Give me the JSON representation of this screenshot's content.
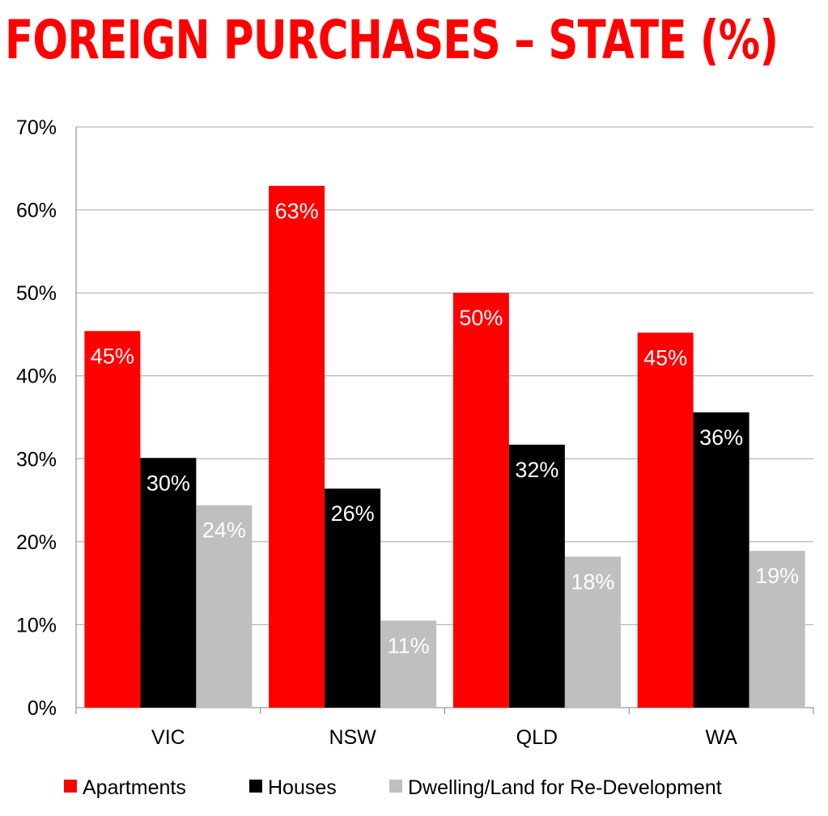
{
  "chart_data": {
    "type": "bar",
    "title": "FOREIGN PURCHASES – STATE (%)",
    "categories": [
      "VIC",
      "NSW",
      "QLD",
      "WA"
    ],
    "series": [
      {
        "name": "Apartments",
        "color": "#ff0000",
        "label_color": "#ffffff",
        "values": [
          45.4,
          62.9,
          50.0,
          45.2
        ],
        "labels": [
          "45%",
          "63%",
          "50%",
          "45%"
        ]
      },
      {
        "name": "Houses",
        "color": "#000000",
        "label_color": "#ffffff",
        "values": [
          30.1,
          26.4,
          31.7,
          35.6
        ],
        "labels": [
          "30%",
          "26%",
          "32%",
          "36%"
        ]
      },
      {
        "name": "Dwelling/Land for Re-Development",
        "color": "#bfbfbf",
        "label_color": "#ffffff",
        "values": [
          24.4,
          10.5,
          18.2,
          18.9
        ],
        "labels": [
          "24%",
          "11%",
          "18%",
          "19%"
        ]
      }
    ],
    "ylim": [
      0,
      70
    ],
    "yticks": [
      0,
      10,
      20,
      30,
      40,
      50,
      60,
      70
    ],
    "ytick_labels": [
      "0%",
      "10%",
      "20%",
      "30%",
      "40%",
      "50%",
      "60%",
      "70%"
    ],
    "grid": true,
    "legend_position": "bottom"
  }
}
